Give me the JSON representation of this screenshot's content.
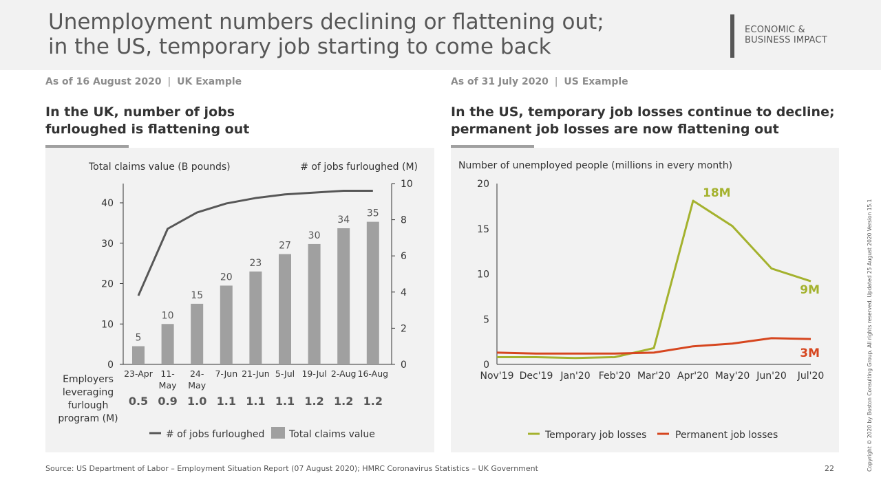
{
  "header": {
    "title_line1": "Unemployment numbers declining or flattening out;",
    "title_line2": "in the US, temporary job starting to come back",
    "tag_line1": "ECONOMIC &",
    "tag_line2": "BUSINESS IMPACT"
  },
  "left": {
    "asof_date": "As of 16 August 2020",
    "asof_sep": "|",
    "asof_example": "UK Example",
    "headline_line1": "In the UK, number of jobs",
    "headline_line2": "furloughed is flattening out"
  },
  "right": {
    "asof_date": "As of 31 July 2020",
    "asof_sep": "|",
    "asof_example": "US Example",
    "headline_line1": "In the US, temporary job losses continue to decline;",
    "headline_line2": "permanent job losses are now flattening out"
  },
  "footer": {
    "source": "Source: US Department of Labor – Employment Situation Report (07 August 2020); HMRC Coronavirus Statistics – UK Government",
    "page_number": "22",
    "copyright": "Copyright © 2020 by Boston Consulting Group. All rights reserved. Updated 25 August 2020 Version 15.1"
  },
  "chart_data": [
    {
      "type": "bar",
      "left_axis_label": "Total claims value (B pounds)",
      "right_axis_label": "# of jobs furloughed (M)",
      "categories": [
        "23-Apr",
        "11-May",
        "24-May",
        "7-Jun",
        "21-Jun",
        "5-Jul",
        "19-Jul",
        "2-Aug",
        "16-Aug"
      ],
      "category_lines": [
        [
          "23-Apr"
        ],
        [
          "11-",
          "May"
        ],
        [
          "24-",
          "May"
        ],
        [
          "7-Jun"
        ],
        [
          "21-Jun"
        ],
        [
          "5-Jul"
        ],
        [
          "19-Jul"
        ],
        [
          "2-Aug"
        ],
        [
          "16-Aug"
        ]
      ],
      "series": [
        {
          "name": "Total claims value",
          "kind": "bar",
          "axis": "left",
          "color": "#a0a0a0",
          "values": [
            4.5,
            10,
            15,
            19.5,
            23,
            27.3,
            29.8,
            33.7,
            35.3
          ],
          "labels": [
            "5",
            "10",
            "15",
            "20",
            "23",
            "27",
            "30",
            "34",
            "35"
          ]
        },
        {
          "name": "# of jobs furloughed",
          "kind": "line",
          "axis": "right",
          "color": "#575757",
          "values": [
            3.8,
            7.5,
            8.4,
            8.9,
            9.2,
            9.4,
            9.5,
            9.6,
            9.6
          ]
        }
      ],
      "left_ylim": [
        0,
        45
      ],
      "left_ticks": [
        0,
        10,
        20,
        30,
        40
      ],
      "right_ylim": [
        0,
        10
      ],
      "right_ticks": [
        0,
        2,
        4,
        6,
        8,
        10
      ],
      "employers_label_lines": [
        "Employers",
        "leveraging",
        "furlough",
        "program (M)"
      ],
      "employers_values": [
        "0.5",
        "0.9",
        "1.0",
        "1.1",
        "1.1",
        "1.1",
        "1.2",
        "1.2",
        "1.2"
      ],
      "legend": [
        "# of jobs furloughed",
        "Total claims value"
      ],
      "legend_position": "bottom"
    },
    {
      "type": "line",
      "title": "Number of unemployed people (millions in every month)",
      "x": [
        "Nov'19",
        "Dec'19",
        "Jan'20",
        "Feb'20",
        "Mar'20",
        "Apr'20",
        "May'20",
        "Jun'20",
        "Jul'20"
      ],
      "series": [
        {
          "name": "Temporary job losses",
          "color": "#a4b22e",
          "values": [
            0.8,
            0.8,
            0.7,
            0.8,
            1.8,
            18.1,
            15.3,
            10.6,
            9.2
          ]
        },
        {
          "name": "Permanent job losses",
          "color": "#d6461f",
          "values": [
            1.3,
            1.2,
            1.2,
            1.2,
            1.3,
            2.0,
            2.3,
            2.9,
            2.8
          ]
        }
      ],
      "annotations": [
        {
          "text": "18M",
          "color": "#a4b22e"
        },
        {
          "text": "9M",
          "color": "#a4b22e"
        },
        {
          "text": "3M",
          "color": "#d6461f"
        }
      ],
      "ylim": [
        0,
        20
      ],
      "yticks": [
        0,
        5,
        10,
        15,
        20
      ],
      "legend_position": "bottom"
    }
  ]
}
